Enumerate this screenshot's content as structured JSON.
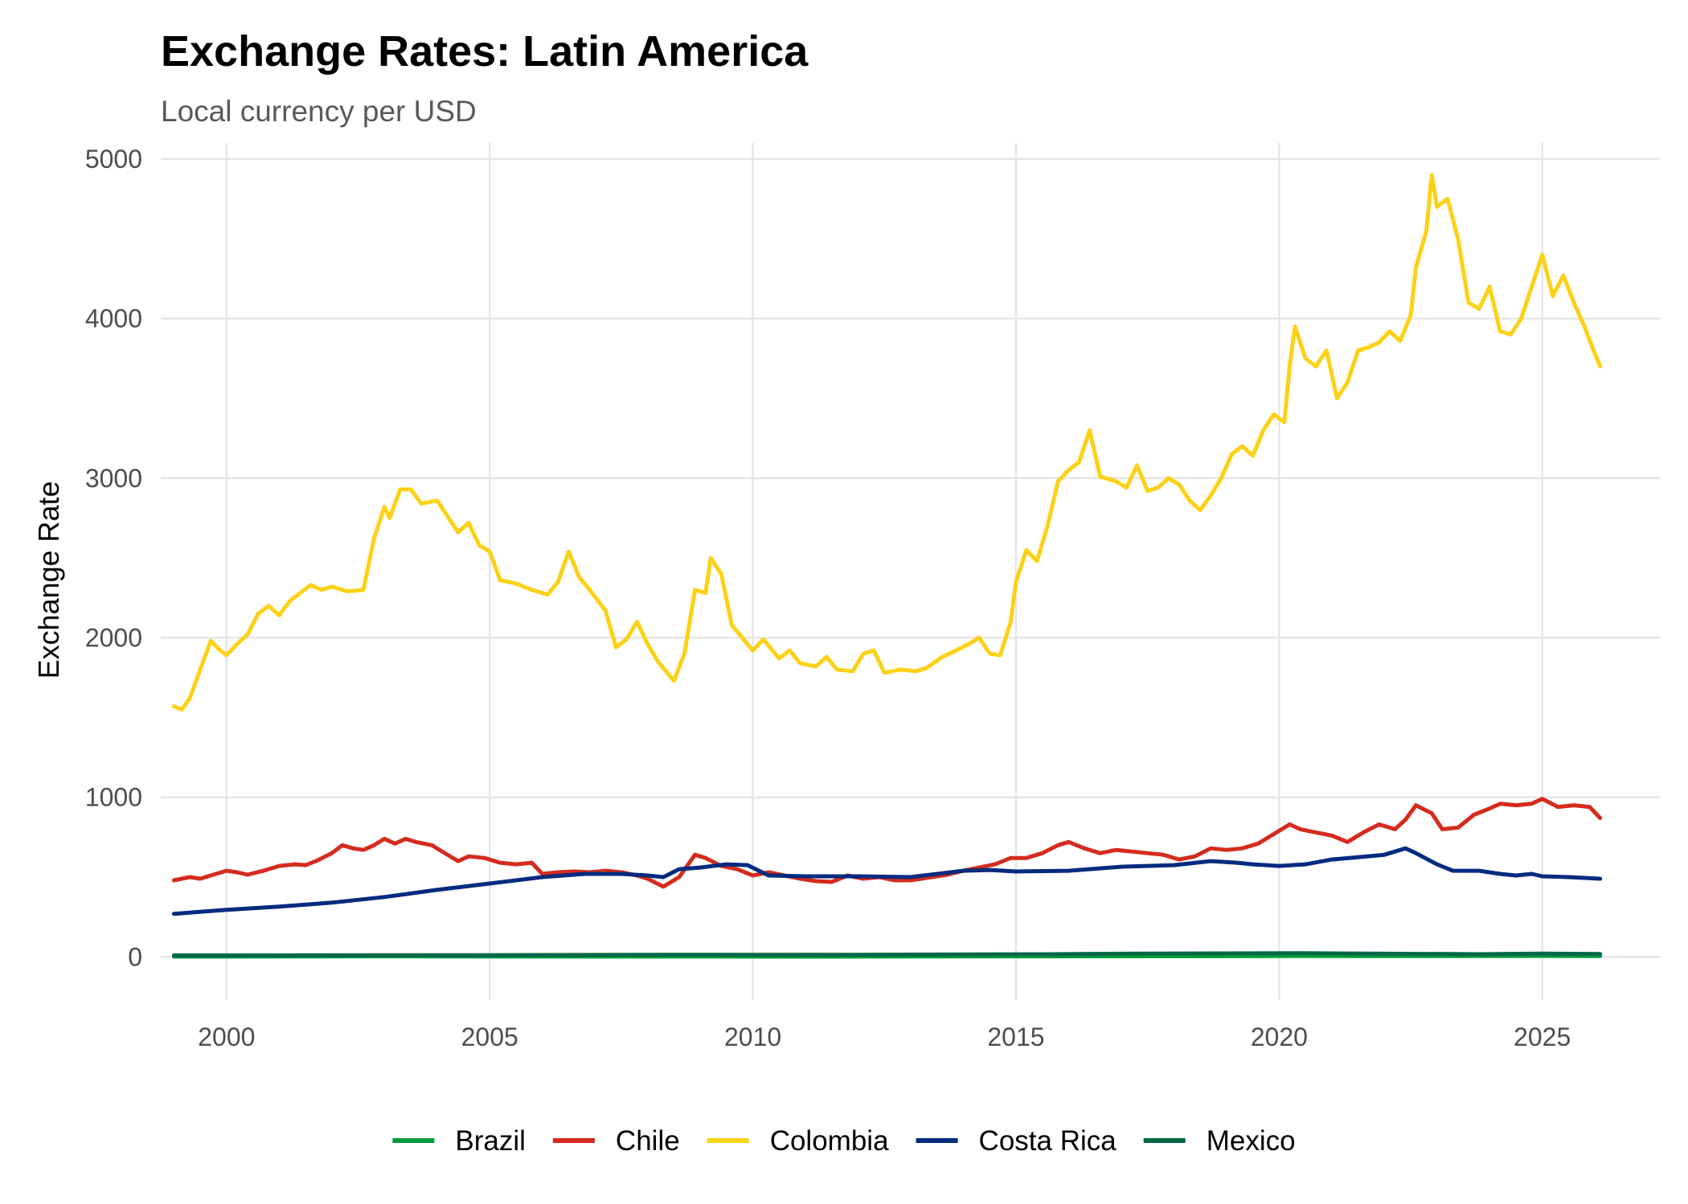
{
  "chart_data": {
    "type": "line",
    "title": "Exchange Rates: Latin America",
    "subtitle": "Local currency per USD",
    "xlabel": "",
    "ylabel": "Exchange Rate",
    "xlim": [
      1998.75,
      2027.25
    ],
    "ylim": [
      -270,
      5100
    ],
    "x_ticks": [
      2000,
      2005,
      2010,
      2015,
      2020,
      2025
    ],
    "x_tick_labels": [
      "2000",
      "2005",
      "2010",
      "2015",
      "2020",
      "2025"
    ],
    "y_ticks": [
      0,
      1000,
      2000,
      3000,
      4000,
      5000
    ],
    "y_tick_labels": [
      "0",
      "1000",
      "2000",
      "3000",
      "4000",
      "5000"
    ],
    "grid": true,
    "legend_position": "bottom",
    "series": [
      {
        "name": "Brazil",
        "color": "#009c3b",
        "points": [
          [
            1999.0,
            1.8
          ],
          [
            2002.9,
            3.6
          ],
          [
            2005,
            2.4
          ],
          [
            2008.5,
            2.3
          ],
          [
            2011,
            1.7
          ],
          [
            2015.5,
            3.9
          ],
          [
            2020.4,
            5.6
          ],
          [
            2022,
            5.2
          ],
          [
            2025.0,
            6.1
          ],
          [
            2026.1,
            5.5
          ]
        ]
      },
      {
        "name": "Chile",
        "color": "#d52b1e",
        "points": [
          [
            1999.0,
            480
          ],
          [
            1999.3,
            500
          ],
          [
            1999.5,
            490
          ],
          [
            1999.8,
            520
          ],
          [
            2000.0,
            540
          ],
          [
            2000.2,
            530
          ],
          [
            2000.4,
            515
          ],
          [
            2000.7,
            540
          ],
          [
            2001.0,
            570
          ],
          [
            2001.3,
            580
          ],
          [
            2001.5,
            575
          ],
          [
            2001.7,
            600
          ],
          [
            2002.0,
            650
          ],
          [
            2002.2,
            700
          ],
          [
            2002.4,
            680
          ],
          [
            2002.6,
            670
          ],
          [
            2002.8,
            700
          ],
          [
            2003.0,
            740
          ],
          [
            2003.2,
            710
          ],
          [
            2003.4,
            740
          ],
          [
            2003.6,
            720
          ],
          [
            2003.9,
            700
          ],
          [
            2004.2,
            640
          ],
          [
            2004.4,
            600
          ],
          [
            2004.6,
            630
          ],
          [
            2004.9,
            620
          ],
          [
            2005.2,
            590
          ],
          [
            2005.5,
            580
          ],
          [
            2005.8,
            590
          ],
          [
            2006.0,
            520
          ],
          [
            2006.3,
            530
          ],
          [
            2006.6,
            535
          ],
          [
            2006.9,
            530
          ],
          [
            2007.2,
            540
          ],
          [
            2007.5,
            530
          ],
          [
            2007.8,
            510
          ],
          [
            2008.0,
            490
          ],
          [
            2008.3,
            440
          ],
          [
            2008.6,
            500
          ],
          [
            2008.9,
            640
          ],
          [
            2009.1,
            620
          ],
          [
            2009.4,
            570
          ],
          [
            2009.7,
            550
          ],
          [
            2010.0,
            510
          ],
          [
            2010.3,
            530
          ],
          [
            2010.6,
            510
          ],
          [
            2010.9,
            490
          ],
          [
            2011.2,
            475
          ],
          [
            2011.5,
            470
          ],
          [
            2011.8,
            510
          ],
          [
            2012.1,
            490
          ],
          [
            2012.4,
            500
          ],
          [
            2012.7,
            480
          ],
          [
            2013.0,
            480
          ],
          [
            2013.4,
            500
          ],
          [
            2013.7,
            515
          ],
          [
            2014.0,
            540
          ],
          [
            2014.3,
            560
          ],
          [
            2014.6,
            580
          ],
          [
            2014.9,
            620
          ],
          [
            2015.2,
            620
          ],
          [
            2015.5,
            650
          ],
          [
            2015.8,
            700
          ],
          [
            2016.0,
            720
          ],
          [
            2016.3,
            680
          ],
          [
            2016.6,
            650
          ],
          [
            2016.9,
            670
          ],
          [
            2017.2,
            660
          ],
          [
            2017.5,
            650
          ],
          [
            2017.8,
            640
          ],
          [
            2018.1,
            610
          ],
          [
            2018.4,
            630
          ],
          [
            2018.7,
            680
          ],
          [
            2019.0,
            670
          ],
          [
            2019.3,
            680
          ],
          [
            2019.6,
            710
          ],
          [
            2019.9,
            770
          ],
          [
            2020.2,
            830
          ],
          [
            2020.4,
            800
          ],
          [
            2020.7,
            780
          ],
          [
            2021.0,
            760
          ],
          [
            2021.3,
            720
          ],
          [
            2021.6,
            780
          ],
          [
            2021.9,
            830
          ],
          [
            2022.2,
            800
          ],
          [
            2022.4,
            860
          ],
          [
            2022.6,
            950
          ],
          [
            2022.9,
            900
          ],
          [
            2023.1,
            800
          ],
          [
            2023.4,
            810
          ],
          [
            2023.7,
            890
          ],
          [
            2024.0,
            930
          ],
          [
            2024.2,
            960
          ],
          [
            2024.5,
            950
          ],
          [
            2024.8,
            960
          ],
          [
            2025.0,
            990
          ],
          [
            2025.3,
            940
          ],
          [
            2025.6,
            950
          ],
          [
            2025.9,
            940
          ],
          [
            2026.1,
            870
          ]
        ]
      },
      {
        "name": "Colombia",
        "color": "#fcd116",
        "points": [
          [
            1999.0,
            1570
          ],
          [
            1999.15,
            1550
          ],
          [
            1999.3,
            1620
          ],
          [
            1999.5,
            1800
          ],
          [
            1999.7,
            1980
          ],
          [
            1999.85,
            1930
          ],
          [
            2000.0,
            1890
          ],
          [
            2000.2,
            1960
          ],
          [
            2000.4,
            2020
          ],
          [
            2000.6,
            2150
          ],
          [
            2000.8,
            2200
          ],
          [
            2001.0,
            2140
          ],
          [
            2001.2,
            2230
          ],
          [
            2001.4,
            2280
          ],
          [
            2001.6,
            2330
          ],
          [
            2001.8,
            2300
          ],
          [
            2002.0,
            2320
          ],
          [
            2002.3,
            2290
          ],
          [
            2002.6,
            2300
          ],
          [
            2002.8,
            2620
          ],
          [
            2003.0,
            2820
          ],
          [
            2003.1,
            2750
          ],
          [
            2003.3,
            2930
          ],
          [
            2003.5,
            2930
          ],
          [
            2003.7,
            2840
          ],
          [
            2004.0,
            2860
          ],
          [
            2004.2,
            2760
          ],
          [
            2004.4,
            2660
          ],
          [
            2004.6,
            2720
          ],
          [
            2004.8,
            2580
          ],
          [
            2005.0,
            2540
          ],
          [
            2005.2,
            2360
          ],
          [
            2005.5,
            2340
          ],
          [
            2005.8,
            2300
          ],
          [
            2006.1,
            2270
          ],
          [
            2006.3,
            2350
          ],
          [
            2006.5,
            2540
          ],
          [
            2006.7,
            2380
          ],
          [
            2006.9,
            2300
          ],
          [
            2007.2,
            2170
          ],
          [
            2007.4,
            1940
          ],
          [
            2007.6,
            1990
          ],
          [
            2007.8,
            2100
          ],
          [
            2008.0,
            1960
          ],
          [
            2008.2,
            1850
          ],
          [
            2008.5,
            1730
          ],
          [
            2008.7,
            1900
          ],
          [
            2008.9,
            2300
          ],
          [
            2009.1,
            2280
          ],
          [
            2009.2,
            2500
          ],
          [
            2009.4,
            2400
          ],
          [
            2009.6,
            2080
          ],
          [
            2009.8,
            2000
          ],
          [
            2010.0,
            1920
          ],
          [
            2010.2,
            1990
          ],
          [
            2010.5,
            1870
          ],
          [
            2010.7,
            1920
          ],
          [
            2010.9,
            1840
          ],
          [
            2011.2,
            1820
          ],
          [
            2011.4,
            1880
          ],
          [
            2011.6,
            1800
          ],
          [
            2011.9,
            1790
          ],
          [
            2012.1,
            1900
          ],
          [
            2012.3,
            1920
          ],
          [
            2012.5,
            1780
          ],
          [
            2012.8,
            1800
          ],
          [
            2013.1,
            1790
          ],
          [
            2013.3,
            1810
          ],
          [
            2013.6,
            1880
          ],
          [
            2013.8,
            1910
          ],
          [
            2014.1,
            1960
          ],
          [
            2014.3,
            2000
          ],
          [
            2014.5,
            1900
          ],
          [
            2014.7,
            1890
          ],
          [
            2014.9,
            2100
          ],
          [
            2015.0,
            2350
          ],
          [
            2015.2,
            2550
          ],
          [
            2015.4,
            2480
          ],
          [
            2015.6,
            2700
          ],
          [
            2015.8,
            2980
          ],
          [
            2016.0,
            3050
          ],
          [
            2016.2,
            3100
          ],
          [
            2016.4,
            3300
          ],
          [
            2016.6,
            3010
          ],
          [
            2016.9,
            2980
          ],
          [
            2017.1,
            2940
          ],
          [
            2017.3,
            3080
          ],
          [
            2017.5,
            2920
          ],
          [
            2017.7,
            2940
          ],
          [
            2017.9,
            3000
          ],
          [
            2018.1,
            2960
          ],
          [
            2018.3,
            2860
          ],
          [
            2018.5,
            2800
          ],
          [
            2018.7,
            2890
          ],
          [
            2018.9,
            3000
          ],
          [
            2019.1,
            3150
          ],
          [
            2019.3,
            3200
          ],
          [
            2019.5,
            3140
          ],
          [
            2019.7,
            3300
          ],
          [
            2019.9,
            3400
          ],
          [
            2020.1,
            3350
          ],
          [
            2020.2,
            3700
          ],
          [
            2020.3,
            3950
          ],
          [
            2020.5,
            3750
          ],
          [
            2020.7,
            3700
          ],
          [
            2020.9,
            3800
          ],
          [
            2021.1,
            3500
          ],
          [
            2021.3,
            3600
          ],
          [
            2021.5,
            3800
          ],
          [
            2021.7,
            3820
          ],
          [
            2021.9,
            3850
          ],
          [
            2022.1,
            3920
          ],
          [
            2022.3,
            3860
          ],
          [
            2022.5,
            4020
          ],
          [
            2022.6,
            4320
          ],
          [
            2022.8,
            4550
          ],
          [
            2022.9,
            4900
          ],
          [
            2023.0,
            4700
          ],
          [
            2023.2,
            4750
          ],
          [
            2023.4,
            4500
          ],
          [
            2023.6,
            4100
          ],
          [
            2023.8,
            4060
          ],
          [
            2024.0,
            4200
          ],
          [
            2024.2,
            3920
          ],
          [
            2024.4,
            3900
          ],
          [
            2024.6,
            4000
          ],
          [
            2024.8,
            4200
          ],
          [
            2025.0,
            4400
          ],
          [
            2025.2,
            4140
          ],
          [
            2025.4,
            4270
          ],
          [
            2025.6,
            4100
          ],
          [
            2025.8,
            3950
          ],
          [
            2026.0,
            3780
          ],
          [
            2026.1,
            3700
          ]
        ]
      },
      {
        "name": "Costa Rica",
        "color": "#002b7f",
        "points": [
          [
            1999.0,
            270
          ],
          [
            2000.0,
            295
          ],
          [
            2001.0,
            315
          ],
          [
            2002.0,
            340
          ],
          [
            2003.0,
            375
          ],
          [
            2004.0,
            420
          ],
          [
            2005.0,
            460
          ],
          [
            2006.0,
            500
          ],
          [
            2006.8,
            520
          ],
          [
            2007.5,
            520
          ],
          [
            2008.0,
            510
          ],
          [
            2008.3,
            500
          ],
          [
            2008.6,
            550
          ],
          [
            2009.0,
            560
          ],
          [
            2009.5,
            580
          ],
          [
            2009.9,
            575
          ],
          [
            2010.3,
            510
          ],
          [
            2011.0,
            505
          ],
          [
            2012.0,
            505
          ],
          [
            2013.0,
            500
          ],
          [
            2014.0,
            540
          ],
          [
            2014.5,
            545
          ],
          [
            2015.0,
            535
          ],
          [
            2016.0,
            540
          ],
          [
            2017.0,
            565
          ],
          [
            2017.5,
            570
          ],
          [
            2018.0,
            575
          ],
          [
            2018.7,
            600
          ],
          [
            2019.2,
            590
          ],
          [
            2019.5,
            580
          ],
          [
            2020.0,
            570
          ],
          [
            2020.5,
            580
          ],
          [
            2021.0,
            610
          ],
          [
            2021.5,
            625
          ],
          [
            2022.0,
            640
          ],
          [
            2022.4,
            680
          ],
          [
            2022.6,
            650
          ],
          [
            2023.0,
            580
          ],
          [
            2023.3,
            540
          ],
          [
            2023.8,
            540
          ],
          [
            2024.2,
            520
          ],
          [
            2024.5,
            510
          ],
          [
            2024.8,
            520
          ],
          [
            2025.0,
            505
          ],
          [
            2025.5,
            500
          ],
          [
            2026.1,
            490
          ]
        ]
      },
      {
        "name": "Mexico",
        "color": "#006847",
        "points": [
          [
            1999.0,
            9.5
          ],
          [
            2001.0,
            9.3
          ],
          [
            2003.0,
            10.8
          ],
          [
            2005.0,
            11.0
          ],
          [
            2008.5,
            13.5
          ],
          [
            2010.0,
            12.6
          ],
          [
            2012.0,
            13.2
          ],
          [
            2015.5,
            16.5
          ],
          [
            2017.0,
            20.0
          ],
          [
            2020.4,
            22.8
          ],
          [
            2022.0,
            20.1
          ],
          [
            2023.8,
            17.0
          ],
          [
            2025.0,
            20.5
          ],
          [
            2026.1,
            18.5
          ]
        ]
      }
    ]
  }
}
